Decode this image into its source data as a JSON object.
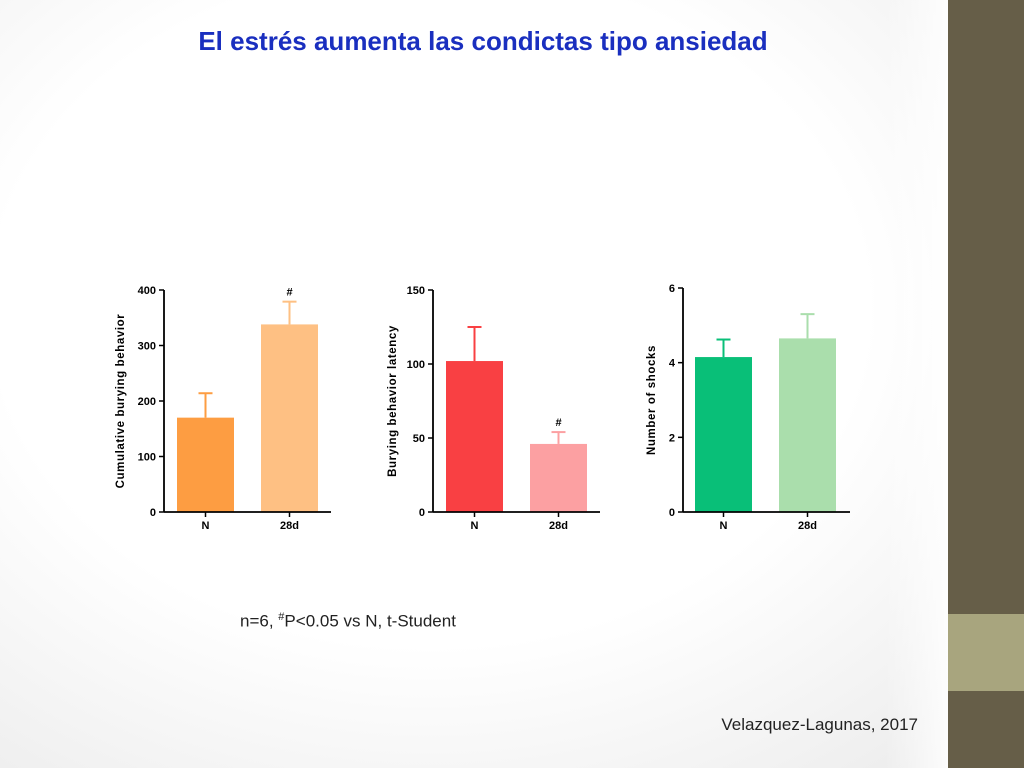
{
  "slide": {
    "title": "El estrés aumenta las condictas tipo ansiedad",
    "note_prefix": "n=6, ",
    "note_sup": "#",
    "note_suffix": "P<0.05 vs N, t-Student",
    "citation": "Velazquez-Lagunas, 2017",
    "colors": {
      "title": "#1a2fbf",
      "side_band": "#665e48",
      "side_accent": "#a8a57e"
    }
  },
  "chart_data": [
    {
      "type": "bar",
      "categories": [
        "N",
        "28d"
      ],
      "values": [
        170,
        338
      ],
      "errors": [
        44,
        41
      ],
      "colors": [
        "#fd9d42",
        "#fec083"
      ],
      "marks": [
        "",
        "#"
      ],
      "ylabel": "Cumulative burying behavior",
      "ylim": [
        0,
        400
      ],
      "yticks": [
        0,
        100,
        200,
        300,
        400
      ]
    },
    {
      "type": "bar",
      "categories": [
        "N",
        "28d"
      ],
      "values": [
        102,
        46
      ],
      "errors": [
        23,
        8
      ],
      "colors": [
        "#f94043",
        "#fca0a2"
      ],
      "marks": [
        "",
        "#"
      ],
      "ylabel": "Burying behavior latency",
      "ylim": [
        0,
        150
      ],
      "yticks": [
        0,
        50,
        100,
        150
      ]
    },
    {
      "type": "bar",
      "categories": [
        "N",
        "28d"
      ],
      "values": [
        4.15,
        4.65
      ],
      "errors": [
        0.47,
        0.65
      ],
      "colors": [
        "#09bf78",
        "#aadeac"
      ],
      "marks": [
        "",
        ""
      ],
      "ylabel": "Number of shocks",
      "ylim": [
        0,
        6
      ],
      "yticks": [
        0,
        2,
        4,
        6
      ]
    }
  ]
}
